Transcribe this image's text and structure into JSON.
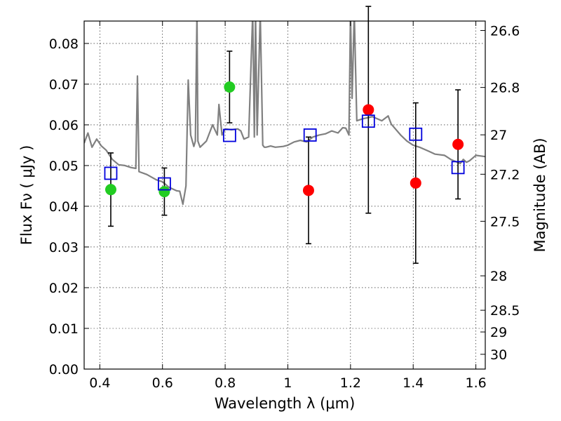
{
  "chart_data": {
    "type": "scatter",
    "xlabel": "Wavelength  λ (μm)",
    "ylabel": "Flux  Fν  ( μJy )",
    "ylabel_right": "Magnitude (AB)",
    "xlim": [
      0.35,
      1.63
    ],
    "ylim": [
      0.0,
      0.0855
    ],
    "grid": true,
    "x_ticks": [
      0.4,
      0.6,
      0.8,
      1.0,
      1.2,
      1.4,
      1.6
    ],
    "x_tick_labels": [
      "0.4",
      "0.6",
      "0.8",
      "1",
      "1.2",
      "1.4",
      "1.6"
    ],
    "y_ticks": [
      0.0,
      0.01,
      0.02,
      0.03,
      0.04,
      0.05,
      0.06,
      0.07,
      0.08
    ],
    "y_tick_labels": [
      "0.00",
      "0.01",
      "0.02",
      "0.03",
      "0.04",
      "0.05",
      "0.06",
      "0.07",
      "0.08"
    ],
    "mag_ticks": [
      26.6,
      26.8,
      27,
      27.2,
      27.5,
      28,
      28.5,
      29,
      30
    ],
    "mag_tick_labels": [
      "26.6",
      "26.8",
      "27",
      "27.2",
      "27.5",
      "28",
      "28.5",
      "29",
      "30"
    ],
    "series": [
      {
        "marker": "circle",
        "color": "#22cc22",
        "points": [
          {
            "x": 0.435,
            "y": 0.0441,
            "err": 0.009
          },
          {
            "x": 0.606,
            "y": 0.0436,
            "err": 0.0058
          },
          {
            "x": 0.814,
            "y": 0.0693,
            "err": 0.0088
          }
        ]
      },
      {
        "marker": "circle",
        "color": "#ff0000",
        "points": [
          {
            "x": 1.066,
            "y": 0.0439,
            "err": 0.0131
          },
          {
            "x": 1.257,
            "y": 0.0637,
            "err": 0.0254
          },
          {
            "x": 1.408,
            "y": 0.0457,
            "err": 0.0197
          },
          {
            "x": 1.543,
            "y": 0.0552,
            "err": 0.0134
          }
        ]
      },
      {
        "marker": "open-square",
        "color": "#0000dd",
        "points": [
          {
            "x": 0.435,
            "y": 0.0481
          },
          {
            "x": 0.606,
            "y": 0.0455
          },
          {
            "x": 0.814,
            "y": 0.0574
          },
          {
            "x": 1.071,
            "y": 0.0575
          },
          {
            "x": 1.257,
            "y": 0.0609
          },
          {
            "x": 1.408,
            "y": 0.0577
          },
          {
            "x": 1.543,
            "y": 0.0495
          }
        ]
      },
      {
        "type": "line",
        "color": "#808080",
        "x": [
          0.35,
          0.362,
          0.375,
          0.39,
          0.405,
          0.42,
          0.44,
          0.46,
          0.48,
          0.5,
          0.515,
          0.52,
          0.525,
          0.55,
          0.58,
          0.6,
          0.62,
          0.645,
          0.655,
          0.665,
          0.675,
          0.682,
          0.69,
          0.7,
          0.705,
          0.71,
          0.713,
          0.72,
          0.74,
          0.76,
          0.775,
          0.78,
          0.79,
          0.8,
          0.82,
          0.84,
          0.85,
          0.86,
          0.875,
          0.888,
          0.893,
          0.897,
          0.902,
          0.912,
          0.92,
          0.925,
          0.93,
          0.945,
          0.96,
          0.985,
          1.0,
          1.02,
          1.04,
          1.06,
          1.08,
          1.1,
          1.12,
          1.14,
          1.16,
          1.175,
          1.185,
          1.195,
          1.2,
          1.205,
          1.212,
          1.22,
          1.24,
          1.27,
          1.3,
          1.32,
          1.33,
          1.36,
          1.38,
          1.4,
          1.42,
          1.45,
          1.47,
          1.5,
          1.52,
          1.55,
          1.56,
          1.57,
          1.58,
          1.6,
          1.63
        ],
        "values": [
          0.0555,
          0.058,
          0.0545,
          0.0565,
          0.0548,
          0.0538,
          0.0515,
          0.0502,
          0.05,
          0.0495,
          0.0493,
          0.072,
          0.0485,
          0.0478,
          0.0465,
          0.046,
          0.0447,
          0.0438,
          0.0437,
          0.0405,
          0.045,
          0.071,
          0.0575,
          0.0547,
          0.056,
          0.0875,
          0.056,
          0.0545,
          0.056,
          0.06,
          0.0575,
          0.065,
          0.0575,
          0.059,
          0.0588,
          0.059,
          0.0585,
          0.0565,
          0.057,
          0.0875,
          0.057,
          0.0875,
          0.0575,
          0.0875,
          0.055,
          0.0545,
          0.0545,
          0.0548,
          0.0545,
          0.0547,
          0.055,
          0.0558,
          0.0562,
          0.0558,
          0.057,
          0.0575,
          0.0578,
          0.0585,
          0.058,
          0.0593,
          0.0592,
          0.0575,
          0.0875,
          0.0665,
          0.0875,
          0.061,
          0.0615,
          0.062,
          0.061,
          0.0622,
          0.0602,
          0.0575,
          0.056,
          0.055,
          0.0545,
          0.0535,
          0.0528,
          0.0525,
          0.0515,
          0.0505,
          0.0515,
          0.0508,
          0.0512,
          0.0525,
          0.0522
        ]
      }
    ]
  }
}
